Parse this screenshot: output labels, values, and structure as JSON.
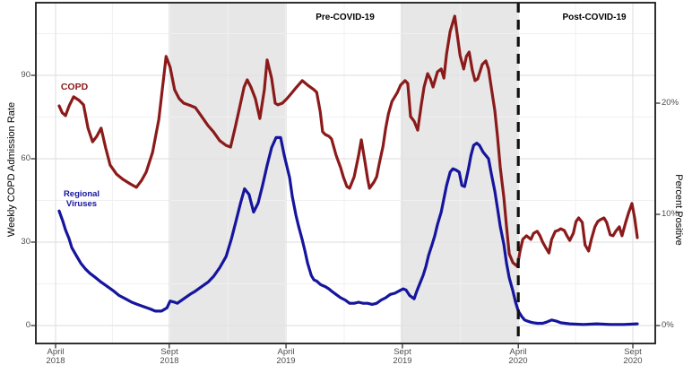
{
  "chart_data": {
    "type": "line",
    "title": "",
    "x_axis": {
      "unit": "weeks since April 2018",
      "range_weeks": [
        0,
        133
      ],
      "ticks": [
        {
          "week": 0,
          "label": "April\n2018"
        },
        {
          "week": 25.2,
          "label": "Sept\n2018"
        },
        {
          "week": 51.1,
          "label": "April\n2019"
        },
        {
          "week": 76.9,
          "label": "Sept\n2019"
        },
        {
          "week": 102.6,
          "label": "April\n2020"
        },
        {
          "week": 128,
          "label": "Sept\n2020"
        }
      ],
      "minor_gridline_weeks": [
        12.6,
        38.2,
        64,
        89.8,
        115.3
      ]
    },
    "y_axis_left": {
      "label": "Weekly COPD Admission Rate",
      "range": [
        0,
        116
      ],
      "ticks": [
        {
          "value": 90,
          "label": "90"
        },
        {
          "value": 60,
          "label": "60"
        },
        {
          "value": 30,
          "label": "30"
        },
        {
          "value": 0,
          "label": "0"
        }
      ],
      "minor_gridlines": [
        15,
        45,
        75,
        105
      ]
    },
    "y_axis_right": {
      "label": "Percent Positive",
      "range_percent": [
        0,
        23.2
      ],
      "ticks": [
        {
          "percent": 20,
          "label": "20%"
        },
        {
          "percent": 10,
          "label": "10%"
        },
        {
          "percent": 0,
          "label": "0%"
        }
      ]
    },
    "annotations": {
      "pre": "Pre-COVID-19",
      "post": "Post-COVID-19"
    },
    "shaded_regions": [
      {
        "from_week": 25.4,
        "to_week": 50.9,
        "meaning": "winter 2018-19 virus season"
      },
      {
        "from_week": 76.5,
        "to_week": 102.4,
        "meaning": "winter 2019-20 virus season"
      }
    ],
    "dashed_line_week": 102.6,
    "colors": {
      "copd": "#8b1a1a",
      "viruses": "#15159d",
      "shading": "#e7e7e7",
      "dashed_line": "#111111"
    },
    "legend_position": "on-chart-labels",
    "grid": true,
    "series": [
      {
        "name": "COPD",
        "axis": "left",
        "color": "#8b1a1a",
        "points": [
          [
            0.8,
            79
          ],
          [
            1.5,
            76.5
          ],
          [
            2.2,
            75.5
          ],
          [
            3,
            79
          ],
          [
            4,
            82.3
          ],
          [
            5.2,
            81
          ],
          [
            6.2,
            79.4
          ],
          [
            7.2,
            71
          ],
          [
            8.2,
            66.1
          ],
          [
            9.1,
            68
          ],
          [
            10.1,
            71
          ],
          [
            11.1,
            64
          ],
          [
            12.1,
            57.7
          ],
          [
            13.5,
            54.5
          ],
          [
            14.9,
            52.6
          ],
          [
            16.5,
            51
          ],
          [
            17.9,
            49.7
          ],
          [
            19.1,
            52.3
          ],
          [
            20.1,
            55.2
          ],
          [
            21.5,
            62.3
          ],
          [
            22.9,
            74.2
          ],
          [
            23.9,
            88.1
          ],
          [
            24.5,
            96.8
          ],
          [
            25.4,
            92.9
          ],
          [
            26.4,
            84.8
          ],
          [
            27.4,
            81.6
          ],
          [
            28.4,
            80
          ],
          [
            29.8,
            79.2
          ],
          [
            31,
            78.4
          ],
          [
            32.4,
            75.2
          ],
          [
            33.8,
            71.9
          ],
          [
            35,
            69.7
          ],
          [
            36.4,
            66.5
          ],
          [
            37.8,
            64.8
          ],
          [
            38.8,
            64.2
          ],
          [
            39.8,
            71
          ],
          [
            40.8,
            78.4
          ],
          [
            41.8,
            85.8
          ],
          [
            42.5,
            88.4
          ],
          [
            43.3,
            85.8
          ],
          [
            44.3,
            81.6
          ],
          [
            45.3,
            74.5
          ],
          [
            46.3,
            84.8
          ],
          [
            46.9,
            95.5
          ],
          [
            47.9,
            89
          ],
          [
            48.7,
            80
          ],
          [
            49.3,
            79.4
          ],
          [
            50.3,
            80
          ],
          [
            51.3,
            81.6
          ],
          [
            52.3,
            83.5
          ],
          [
            53.3,
            85.5
          ],
          [
            54.7,
            88.1
          ],
          [
            55.9,
            86.5
          ],
          [
            57.3,
            84.8
          ],
          [
            57.9,
            83.9
          ],
          [
            58.7,
            76.8
          ],
          [
            59.2,
            69.7
          ],
          [
            59.8,
            68.7
          ],
          [
            60.6,
            68.1
          ],
          [
            61.2,
            67.1
          ],
          [
            62.2,
            61.3
          ],
          [
            63.2,
            56.8
          ],
          [
            63.8,
            53.5
          ],
          [
            64.6,
            50
          ],
          [
            65.2,
            49.4
          ],
          [
            66.2,
            53.5
          ],
          [
            67.2,
            61.3
          ],
          [
            67.8,
            66.8
          ],
          [
            68.6,
            59
          ],
          [
            69.2,
            52.6
          ],
          [
            69.6,
            49.4
          ],
          [
            70.6,
            51.6
          ],
          [
            71.2,
            53.5
          ],
          [
            71.8,
            58.4
          ],
          [
            72.6,
            64.5
          ],
          [
            73.2,
            71
          ],
          [
            73.8,
            76.1
          ],
          [
            74.6,
            80.6
          ],
          [
            75.2,
            82.3
          ],
          [
            75.8,
            83.9
          ],
          [
            76.5,
            86.5
          ],
          [
            77.5,
            88.1
          ],
          [
            78.1,
            87.1
          ],
          [
            78.7,
            75.2
          ],
          [
            79.5,
            73.5
          ],
          [
            80.3,
            70.3
          ],
          [
            81.1,
            79.4
          ],
          [
            81.7,
            85.8
          ],
          [
            82.5,
            90.6
          ],
          [
            83.1,
            88.7
          ],
          [
            83.7,
            85.8
          ],
          [
            84.7,
            91.3
          ],
          [
            85.5,
            92.3
          ],
          [
            86.1,
            89
          ],
          [
            86.7,
            97.7
          ],
          [
            87.5,
            105.8
          ],
          [
            88.5,
            111.3
          ],
          [
            89.1,
            104.2
          ],
          [
            89.7,
            97.1
          ],
          [
            90.5,
            92.3
          ],
          [
            91.1,
            96.8
          ],
          [
            91.7,
            98.4
          ],
          [
            92.4,
            91.9
          ],
          [
            93,
            88.1
          ],
          [
            93.6,
            88.7
          ],
          [
            94.6,
            93.9
          ],
          [
            95.4,
            95.2
          ],
          [
            96,
            92.3
          ],
          [
            96.6,
            85.8
          ],
          [
            97.4,
            77.4
          ],
          [
            98,
            67.7
          ],
          [
            98.6,
            56.8
          ],
          [
            99.4,
            46.1
          ],
          [
            100,
            35.5
          ],
          [
            100.6,
            25.8
          ],
          [
            101.4,
            22.6
          ],
          [
            102.4,
            21.3
          ],
          [
            103,
            26.8
          ],
          [
            103.6,
            31
          ],
          [
            104.4,
            32.3
          ],
          [
            105.4,
            31
          ],
          [
            106,
            33.2
          ],
          [
            106.8,
            33.9
          ],
          [
            107.4,
            32.3
          ],
          [
            108,
            30
          ],
          [
            108.8,
            27.7
          ],
          [
            109.4,
            26.1
          ],
          [
            110,
            31
          ],
          [
            110.8,
            33.9
          ],
          [
            111.4,
            34.2
          ],
          [
            112,
            34.8
          ],
          [
            112.8,
            34.2
          ],
          [
            113.4,
            32.3
          ],
          [
            114,
            30.6
          ],
          [
            114.8,
            33.2
          ],
          [
            115.4,
            37.4
          ],
          [
            116,
            38.7
          ],
          [
            116.8,
            37.1
          ],
          [
            117.4,
            29
          ],
          [
            118.2,
            26.8
          ],
          [
            118.8,
            31
          ],
          [
            119.6,
            35.5
          ],
          [
            120.2,
            37.4
          ],
          [
            120.8,
            38.1
          ],
          [
            121.6,
            38.7
          ],
          [
            122.2,
            37.1
          ],
          [
            123,
            32.6
          ],
          [
            123.6,
            32.3
          ],
          [
            124.2,
            33.9
          ],
          [
            125,
            35.5
          ],
          [
            125.6,
            32.3
          ],
          [
            126.4,
            37.1
          ],
          [
            127,
            40.3
          ],
          [
            127.8,
            43.9
          ],
          [
            128.4,
            38.7
          ],
          [
            129,
            31.6
          ]
        ]
      },
      {
        "name": "Regional Viruses",
        "axis": "right",
        "color": "#15159d",
        "points": [
          [
            0.8,
            10.3
          ],
          [
            1.6,
            9.4
          ],
          [
            2.2,
            8.6
          ],
          [
            3,
            7.8
          ],
          [
            3.6,
            7.0
          ],
          [
            4.6,
            6.3
          ],
          [
            5.6,
            5.6
          ],
          [
            6.6,
            5.1
          ],
          [
            7.6,
            4.7
          ],
          [
            8.9,
            4.3
          ],
          [
            10.1,
            3.9
          ],
          [
            11.5,
            3.5
          ],
          [
            12.9,
            3.1
          ],
          [
            14.1,
            2.7
          ],
          [
            15.5,
            2.4
          ],
          [
            16.9,
            2.1
          ],
          [
            18.1,
            1.9
          ],
          [
            19.5,
            1.7
          ],
          [
            20.9,
            1.5
          ],
          [
            22.1,
            1.3
          ],
          [
            23.5,
            1.3
          ],
          [
            24.7,
            1.6
          ],
          [
            25.4,
            2.2
          ],
          [
            26.4,
            2.1
          ],
          [
            27,
            2.0
          ],
          [
            28.4,
            2.4
          ],
          [
            29.8,
            2.8
          ],
          [
            31,
            3.1
          ],
          [
            32.4,
            3.5
          ],
          [
            33.8,
            3.9
          ],
          [
            35,
            4.4
          ],
          [
            36.4,
            5.2
          ],
          [
            37.8,
            6.2
          ],
          [
            39,
            7.8
          ],
          [
            40,
            9.4
          ],
          [
            41,
            11
          ],
          [
            41.9,
            12.3
          ],
          [
            42.9,
            11.8
          ],
          [
            43.9,
            10.2
          ],
          [
            44.9,
            11
          ],
          [
            45.9,
            12.6
          ],
          [
            46.9,
            14.4
          ],
          [
            47.9,
            16
          ],
          [
            48.9,
            16.9
          ],
          [
            49.9,
            16.9
          ],
          [
            50.7,
            15.3
          ],
          [
            51.3,
            14.3
          ],
          [
            51.9,
            13.3
          ],
          [
            52.5,
            11.6
          ],
          [
            53.3,
            9.9
          ],
          [
            53.9,
            8.9
          ],
          [
            54.7,
            7.7
          ],
          [
            55.3,
            6.7
          ],
          [
            55.9,
            5.6
          ],
          [
            56.7,
            4.5
          ],
          [
            57.3,
            4.1
          ],
          [
            57.9,
            4.0
          ],
          [
            58.7,
            3.7
          ],
          [
            59.2,
            3.6
          ],
          [
            59.8,
            3.5
          ],
          [
            60.6,
            3.3
          ],
          [
            61.2,
            3.1
          ],
          [
            62.2,
            2.8
          ],
          [
            63.2,
            2.5
          ],
          [
            64.2,
            2.3
          ],
          [
            65.2,
            2.0
          ],
          [
            66.2,
            2.0
          ],
          [
            67.2,
            2.1
          ],
          [
            68.2,
            2.0
          ],
          [
            69.2,
            2.0
          ],
          [
            70.2,
            1.9
          ],
          [
            71.2,
            2.0
          ],
          [
            72.2,
            2.3
          ],
          [
            73.2,
            2.5
          ],
          [
            74.2,
            2.8
          ],
          [
            75.2,
            2.9
          ],
          [
            76.1,
            3.1
          ],
          [
            77.1,
            3.3
          ],
          [
            77.7,
            3.2
          ],
          [
            78.5,
            2.7
          ],
          [
            79.5,
            2.4
          ],
          [
            80.1,
            3.1
          ],
          [
            80.7,
            3.7
          ],
          [
            81.5,
            4.5
          ],
          [
            82.1,
            5.3
          ],
          [
            82.7,
            6.3
          ],
          [
            83.5,
            7.3
          ],
          [
            84.1,
            8.1
          ],
          [
            84.7,
            9.1
          ],
          [
            85.5,
            10.2
          ],
          [
            86.1,
            11.4
          ],
          [
            86.7,
            12.6
          ],
          [
            87.5,
            13.8
          ],
          [
            88.1,
            14.1
          ],
          [
            88.7,
            14.0
          ],
          [
            89.5,
            13.8
          ],
          [
            90.1,
            12.6
          ],
          [
            90.7,
            12.5
          ],
          [
            91.5,
            14.0
          ],
          [
            92.1,
            15.3
          ],
          [
            92.7,
            16.2
          ],
          [
            93.4,
            16.4
          ],
          [
            94,
            16.2
          ],
          [
            94.8,
            15.6
          ],
          [
            96,
            15.0
          ],
          [
            96.6,
            13.7
          ],
          [
            97.4,
            12.1
          ],
          [
            98,
            10.5
          ],
          [
            98.6,
            8.9
          ],
          [
            99.4,
            7.3
          ],
          [
            100,
            5.6
          ],
          [
            100.6,
            4.3
          ],
          [
            101.4,
            3.1
          ],
          [
            102,
            2.1
          ],
          [
            102.6,
            1.3
          ],
          [
            103.4,
            0.8
          ],
          [
            104,
            0.5
          ],
          [
            104.6,
            0.4
          ],
          [
            105.4,
            0.3
          ],
          [
            106,
            0.25
          ],
          [
            106.8,
            0.2
          ],
          [
            108,
            0.2
          ],
          [
            108.8,
            0.3
          ],
          [
            110,
            0.5
          ],
          [
            111,
            0.4
          ],
          [
            112,
            0.25
          ],
          [
            114,
            0.15
          ],
          [
            117,
            0.1
          ],
          [
            120,
            0.15
          ],
          [
            123,
            0.1
          ],
          [
            126,
            0.1
          ],
          [
            129,
            0.15
          ]
        ]
      }
    ]
  }
}
